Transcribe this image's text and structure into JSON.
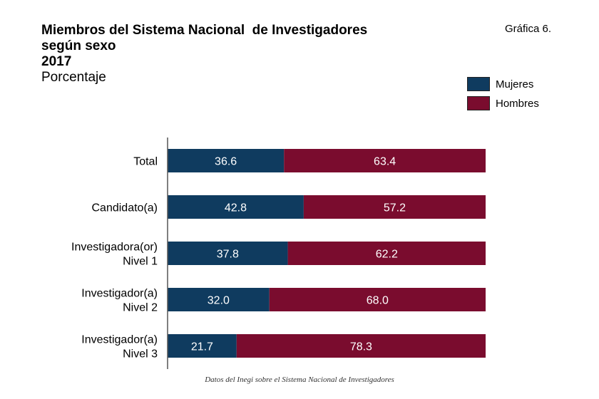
{
  "chart_number": "Gráfica 6.",
  "footnote": "Datos del Inegi sobre el Sistema Nacional de Investigadores",
  "chart_data": {
    "type": "bar",
    "orientation": "horizontal",
    "stacked": true,
    "title": [
      "Miembros del Sistema Nacional  de Investigadores",
      "según sexo",
      "2017"
    ],
    "subtitle": "Porcentaje",
    "categories": [
      [
        "Total"
      ],
      [
        "Candidato(a)"
      ],
      [
        "Investigadora(or)",
        "Nivel 1"
      ],
      [
        "Investigador(a)",
        "Nivel 2"
      ],
      [
        "Investigador(a)",
        "Nivel 3"
      ]
    ],
    "series": [
      {
        "name": "Mujeres",
        "color": "#0f3b5f",
        "values": [
          36.6,
          42.8,
          37.8,
          32.0,
          21.7
        ],
        "labels": [
          "36.6",
          "42.8",
          "37.8",
          "32.0",
          "21.7"
        ]
      },
      {
        "name": "Hombres",
        "color": "#7a0c2e",
        "values": [
          63.4,
          57.2,
          62.2,
          68.0,
          78.3
        ],
        "labels": [
          "63.4",
          "57.2",
          "62.2",
          "68.0",
          "78.3"
        ]
      }
    ],
    "xlim": [
      0,
      100
    ],
    "grid": false,
    "legend_position": "top-right"
  }
}
